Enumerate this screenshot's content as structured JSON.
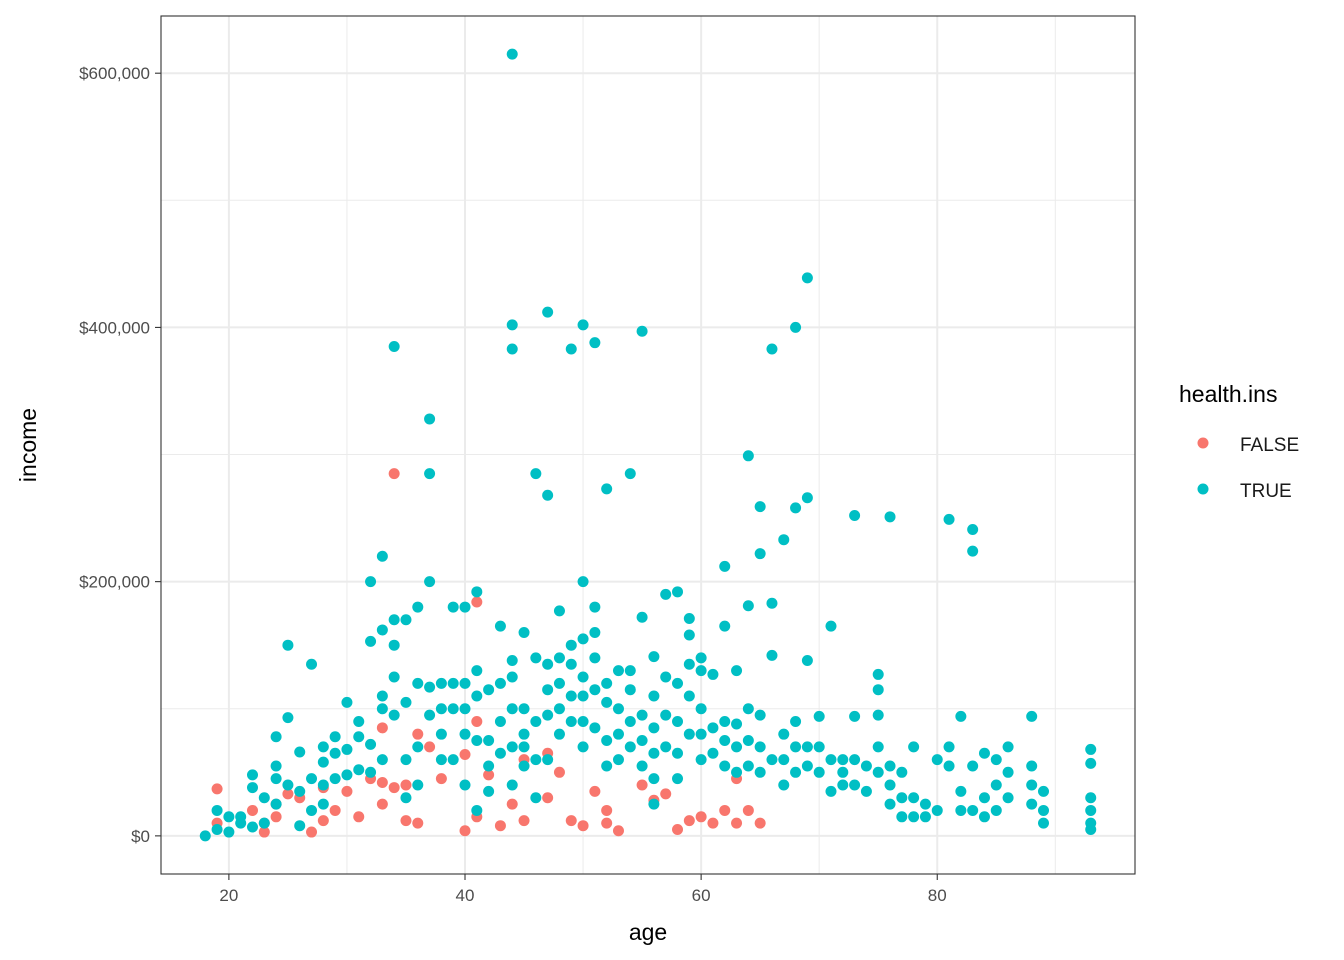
{
  "chart_data": {
    "type": "scatter",
    "xlabel": "age",
    "ylabel": "income",
    "xlim": [
      14.25,
      96.75
    ],
    "ylim": [
      -30000,
      645000
    ],
    "xticks": [
      20,
      40,
      60,
      80
    ],
    "yticks": [
      0,
      200000,
      400000,
      600000
    ],
    "ytick_labels": [
      "$0",
      "$200,000",
      "$400,000",
      "$600,000"
    ],
    "grid": true,
    "legend": {
      "title": "health.ins",
      "placement": "right"
    },
    "series": [
      {
        "name": "FALSE",
        "color": "#F8766D",
        "x": [
          19,
          19,
          22,
          23,
          23,
          24,
          24,
          25,
          26,
          27,
          28,
          28,
          29,
          30,
          31,
          32,
          33,
          33,
          33,
          34,
          34,
          35,
          35,
          36,
          36,
          37,
          38,
          40,
          40,
          41,
          41,
          41,
          42,
          43,
          44,
          45,
          45,
          47,
          47,
          48,
          49,
          50,
          51,
          52,
          52,
          53,
          55,
          56,
          57,
          58,
          59,
          60,
          61,
          62,
          63,
          63,
          64,
          65
        ],
        "y": [
          37000,
          10000,
          20000,
          10000,
          3000,
          25000,
          15000,
          33000,
          30000,
          3000,
          38000,
          12000,
          20000,
          35000,
          15000,
          45000,
          85000,
          42000,
          25000,
          285000,
          38000,
          40000,
          12000,
          80000,
          10000,
          70000,
          45000,
          64000,
          4000,
          184000,
          90000,
          15000,
          48000,
          8000,
          25000,
          60000,
          12000,
          65000,
          30000,
          50000,
          12000,
          8000,
          35000,
          20000,
          10000,
          4000,
          40000,
          28000,
          33000,
          5000,
          12000,
          15000,
          10000,
          20000,
          45000,
          10000,
          20000,
          10000
        ]
      },
      {
        "name": "TRUE",
        "color": "#00BFC4",
        "x": [
          18,
          19,
          19,
          20,
          20,
          21,
          21,
          22,
          22,
          22,
          23,
          23,
          24,
          24,
          24,
          24,
          25,
          25,
          25,
          26,
          26,
          26,
          27,
          27,
          27,
          28,
          28,
          28,
          28,
          29,
          29,
          29,
          30,
          30,
          30,
          31,
          31,
          31,
          32,
          32,
          32,
          32,
          33,
          33,
          33,
          33,
          33,
          34,
          34,
          34,
          34,
          34,
          35,
          35,
          35,
          35,
          36,
          36,
          36,
          36,
          37,
          37,
          37,
          37,
          37,
          38,
          38,
          38,
          38,
          39,
          39,
          39,
          39,
          40,
          40,
          40,
          40,
          40,
          41,
          41,
          41,
          41,
          41,
          42,
          42,
          42,
          42,
          43,
          43,
          43,
          43,
          44,
          44,
          44,
          44,
          44,
          44,
          44,
          44,
          45,
          45,
          45,
          45,
          45,
          46,
          46,
          46,
          46,
          46,
          47,
          47,
          47,
          47,
          47,
          47,
          48,
          48,
          48,
          48,
          48,
          49,
          49,
          49,
          49,
          49,
          50,
          50,
          50,
          50,
          50,
          50,
          50,
          51,
          51,
          51,
          51,
          51,
          51,
          52,
          52,
          52,
          52,
          52,
          53,
          53,
          53,
          53,
          54,
          54,
          54,
          54,
          54,
          55,
          55,
          55,
          55,
          55,
          56,
          56,
          56,
          56,
          56,
          56,
          57,
          57,
          57,
          57,
          58,
          58,
          58,
          58,
          58,
          59,
          59,
          59,
          59,
          59,
          60,
          60,
          60,
          60,
          60,
          61,
          61,
          61,
          62,
          62,
          62,
          62,
          62,
          63,
          63,
          63,
          63,
          64,
          64,
          64,
          64,
          64,
          65,
          65,
          65,
          65,
          65,
          66,
          66,
          66,
          66,
          67,
          67,
          67,
          67,
          68,
          68,
          68,
          68,
          68,
          69,
          69,
          69,
          69,
          69,
          70,
          70,
          70,
          71,
          71,
          71,
          72,
          72,
          72,
          73,
          73,
          73,
          73,
          74,
          74,
          75,
          75,
          75,
          75,
          75,
          76,
          76,
          76,
          76,
          77,
          77,
          77,
          78,
          78,
          78,
          79,
          79,
          80,
          80,
          81,
          81,
          81,
          82,
          82,
          82,
          83,
          83,
          83,
          83,
          84,
          84,
          84,
          85,
          85,
          85,
          86,
          86,
          86,
          88,
          88,
          88,
          88,
          89,
          89,
          89,
          93,
          93,
          93,
          93,
          93,
          93
        ],
        "y": [
          0,
          20000,
          5000,
          15000,
          3000,
          10000,
          15000,
          48000,
          38000,
          7000,
          30000,
          10000,
          78000,
          55000,
          25000,
          45000,
          150000,
          93000,
          40000,
          66000,
          35000,
          8000,
          135000,
          45000,
          20000,
          70000,
          58000,
          40000,
          25000,
          78000,
          65000,
          45000,
          105000,
          68000,
          48000,
          90000,
          78000,
          52000,
          200000,
          153000,
          72000,
          50000,
          220000,
          162000,
          110000,
          100000,
          60000,
          385000,
          170000,
          150000,
          125000,
          95000,
          170000,
          105000,
          60000,
          30000,
          180000,
          120000,
          70000,
          40000,
          328000,
          285000,
          200000,
          117000,
          95000,
          120000,
          100000,
          80000,
          60000,
          180000,
          120000,
          100000,
          60000,
          180000,
          120000,
          100000,
          80000,
          40000,
          192000,
          130000,
          110000,
          75000,
          20000,
          115000,
          75000,
          55000,
          35000,
          165000,
          120000,
          90000,
          65000,
          615000,
          402000,
          383000,
          138000,
          125000,
          100000,
          70000,
          40000,
          160000,
          100000,
          80000,
          70000,
          55000,
          285000,
          140000,
          90000,
          60000,
          30000,
          412000,
          268000,
          135000,
          115000,
          95000,
          60000,
          177000,
          140000,
          120000,
          100000,
          80000,
          383000,
          150000,
          135000,
          110000,
          90000,
          402000,
          200000,
          155000,
          125000,
          110000,
          90000,
          70000,
          388000,
          180000,
          160000,
          140000,
          115000,
          85000,
          273000,
          120000,
          105000,
          75000,
          55000,
          130000,
          100000,
          80000,
          60000,
          285000,
          130000,
          115000,
          90000,
          70000,
          397000,
          172000,
          95000,
          75000,
          55000,
          141000,
          110000,
          85000,
          65000,
          45000,
          25000,
          190000,
          125000,
          95000,
          70000,
          192000,
          120000,
          90000,
          65000,
          45000,
          171000,
          158000,
          135000,
          110000,
          80000,
          140000,
          130000,
          100000,
          80000,
          60000,
          127000,
          85000,
          65000,
          212000,
          165000,
          90000,
          75000,
          55000,
          130000,
          88000,
          70000,
          50000,
          299000,
          181000,
          100000,
          75000,
          55000,
          259000,
          222000,
          95000,
          70000,
          50000,
          383000,
          183000,
          142000,
          60000,
          233000,
          80000,
          60000,
          40000,
          400000,
          258000,
          90000,
          70000,
          50000,
          439000,
          266000,
          138000,
          70000,
          55000,
          94000,
          70000,
          50000,
          165000,
          60000,
          35000,
          60000,
          50000,
          40000,
          252000,
          94000,
          60000,
          40000,
          55000,
          35000,
          127000,
          115000,
          95000,
          70000,
          50000,
          251000,
          55000,
          40000,
          25000,
          50000,
          30000,
          15000,
          70000,
          30000,
          15000,
          25000,
          15000,
          60000,
          20000,
          249000,
          70000,
          55000,
          94000,
          35000,
          20000,
          241000,
          224000,
          55000,
          20000,
          65000,
          30000,
          15000,
          60000,
          40000,
          20000,
          70000,
          50000,
          30000,
          94000,
          55000,
          40000,
          25000,
          35000,
          20000,
          10000,
          68000,
          57000,
          30000,
          20000,
          10000,
          5000
        ]
      }
    ]
  }
}
